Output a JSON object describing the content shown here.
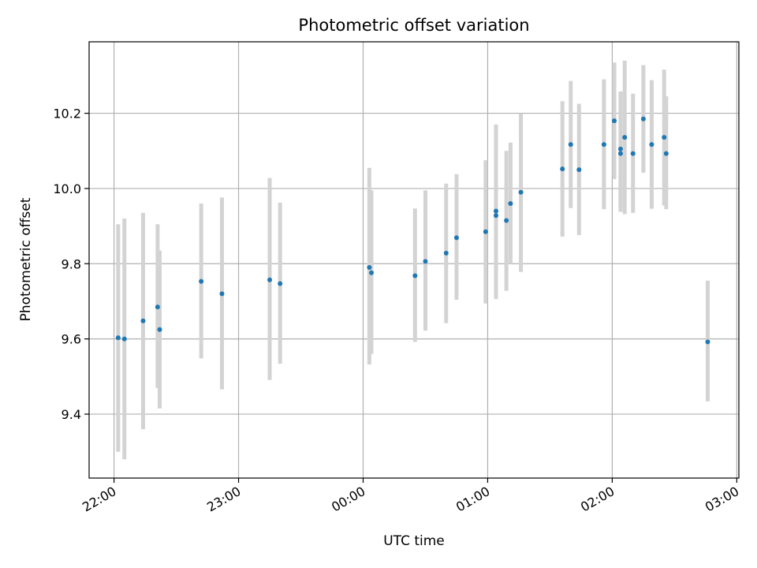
{
  "chart_data": {
    "type": "scatter",
    "title": "Photometric offset variation",
    "xlabel": "UTC time",
    "ylabel": "Photometric offset",
    "x_tick_labels": [
      "22:00",
      "23:00",
      "00:00",
      "01:00",
      "02:00",
      "03:00"
    ],
    "y_tick_labels": [
      "9.4",
      "9.6",
      "9.8",
      "10.0",
      "10.2"
    ],
    "xlim": [
      "21:48",
      "03:01"
    ],
    "ylim": [
      9.23,
      10.39
    ],
    "grid": true,
    "colors": {
      "points": "#1f77b4",
      "error_bars": "#d3d3d3",
      "grid": "#b0b0b0"
    },
    "points": [
      {
        "x": "22:02",
        "y": 9.603,
        "ylow": 9.3,
        "yhigh": 9.905
      },
      {
        "x": "22:05",
        "y": 9.6,
        "ylow": 9.28,
        "yhigh": 9.92
      },
      {
        "x": "22:14",
        "y": 9.648,
        "ylow": 9.36,
        "yhigh": 9.935
      },
      {
        "x": "22:21",
        "y": 9.685,
        "ylow": 9.47,
        "yhigh": 9.905
      },
      {
        "x": "22:22",
        "y": 9.625,
        "ylow": 9.415,
        "yhigh": 9.835
      },
      {
        "x": "22:42",
        "y": 9.753,
        "ylow": 9.548,
        "yhigh": 9.96
      },
      {
        "x": "22:52",
        "y": 9.72,
        "ylow": 9.466,
        "yhigh": 9.976
      },
      {
        "x": "23:15",
        "y": 9.757,
        "ylow": 9.491,
        "yhigh": 10.028
      },
      {
        "x": "23:20",
        "y": 9.747,
        "ylow": 9.534,
        "yhigh": 9.962
      },
      {
        "x": "00:03",
        "y": 9.79,
        "ylow": 9.532,
        "yhigh": 10.055
      },
      {
        "x": "00:04",
        "y": 9.776,
        "ylow": 9.56,
        "yhigh": 9.995
      },
      {
        "x": "00:25",
        "y": 9.768,
        "ylow": 9.592,
        "yhigh": 9.947
      },
      {
        "x": "00:30",
        "y": 9.806,
        "ylow": 9.622,
        "yhigh": 9.995
      },
      {
        "x": "00:40",
        "y": 9.828,
        "ylow": 9.642,
        "yhigh": 10.013
      },
      {
        "x": "00:45",
        "y": 9.869,
        "ylow": 9.704,
        "yhigh": 10.038
      },
      {
        "x": "00:59",
        "y": 9.885,
        "ylow": 9.694,
        "yhigh": 10.075
      },
      {
        "x": "01:04",
        "y": 9.928,
        "ylow": 9.706,
        "yhigh": 10.15
      },
      {
        "x": "01:04",
        "y": 9.94,
        "ylow": 9.71,
        "yhigh": 10.17
      },
      {
        "x": "01:09",
        "y": 9.915,
        "ylow": 9.728,
        "yhigh": 10.1
      },
      {
        "x": "01:11",
        "y": 9.96,
        "ylow": 9.8,
        "yhigh": 10.122
      },
      {
        "x": "01:16",
        "y": 9.99,
        "ylow": 9.778,
        "yhigh": 10.2
      },
      {
        "x": "01:36",
        "y": 10.052,
        "ylow": 9.872,
        "yhigh": 10.232
      },
      {
        "x": "01:40",
        "y": 10.117,
        "ylow": 9.948,
        "yhigh": 10.286
      },
      {
        "x": "01:44",
        "y": 10.05,
        "ylow": 9.876,
        "yhigh": 10.225
      },
      {
        "x": "01:56",
        "y": 10.117,
        "ylow": 9.945,
        "yhigh": 10.29
      },
      {
        "x": "02:01",
        "y": 10.18,
        "ylow": 10.025,
        "yhigh": 10.335
      },
      {
        "x": "02:04",
        "y": 10.105,
        "ylow": 9.95,
        "yhigh": 10.258
      },
      {
        "x": "02:04",
        "y": 10.093,
        "ylow": 9.938,
        "yhigh": 10.25
      },
      {
        "x": "02:06",
        "y": 10.136,
        "ylow": 9.932,
        "yhigh": 10.34
      },
      {
        "x": "02:10",
        "y": 10.093,
        "ylow": 9.935,
        "yhigh": 10.252
      },
      {
        "x": "02:15",
        "y": 10.185,
        "ylow": 10.042,
        "yhigh": 10.328
      },
      {
        "x": "02:19",
        "y": 10.117,
        "ylow": 9.946,
        "yhigh": 10.288
      },
      {
        "x": "02:25",
        "y": 10.136,
        "ylow": 9.955,
        "yhigh": 10.316
      },
      {
        "x": "02:26",
        "y": 10.093,
        "ylow": 9.945,
        "yhigh": 10.245
      },
      {
        "x": "02:46",
        "y": 9.592,
        "ylow": 9.434,
        "yhigh": 9.755
      }
    ]
  }
}
